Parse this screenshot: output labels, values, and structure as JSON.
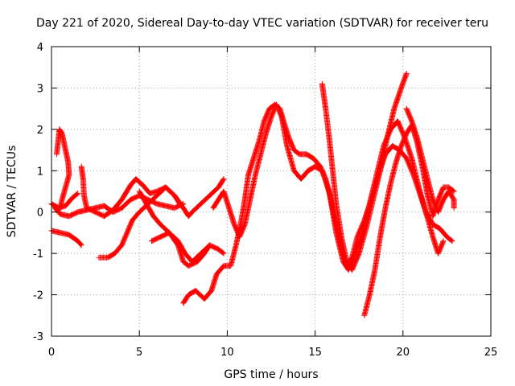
{
  "chart_data": {
    "type": "scatter",
    "title": "Day 221 of 2020, Sidereal Day-to-day VTEC variation (SDTVAR) for receiver teru",
    "xlabel": "GPS time / hours",
    "ylabel": "SDTVAR / TECUs",
    "xlim": [
      0,
      25
    ],
    "ylim": [
      -3,
      4
    ],
    "xticks": [
      0,
      5,
      10,
      15,
      20,
      25
    ],
    "yticks": [
      -3,
      -2,
      -1,
      0,
      1,
      2,
      3,
      4
    ],
    "grid": true,
    "marker": "+",
    "color": "#ff0000",
    "series": [
      {
        "name": "track-1",
        "points": [
          [
            0,
            -0.45
          ],
          [
            0.5,
            -0.5
          ],
          [
            1,
            -0.55
          ],
          [
            1.5,
            -0.7
          ],
          [
            1.7,
            -0.8
          ]
        ]
      },
      {
        "name": "track-2",
        "points": [
          [
            0,
            0.2
          ],
          [
            0.4,
            0.1
          ],
          [
            0.8,
            0.15
          ],
          [
            1.2,
            0.35
          ],
          [
            1.5,
            0.45
          ]
        ]
      },
      {
        "name": "track-3",
        "points": [
          [
            0.3,
            1.4
          ],
          [
            0.45,
            2.0
          ],
          [
            0.6,
            1.9
          ],
          [
            0.75,
            1.6
          ],
          [
            0.85,
            1.4
          ],
          [
            0.95,
            1.2
          ],
          [
            1.0,
            0.9
          ],
          [
            0.8,
            0.6
          ],
          [
            0.6,
            0.3
          ],
          [
            0.5,
            0.1
          ]
        ]
      },
      {
        "name": "track-4",
        "points": [
          [
            0.2,
            0.1
          ],
          [
            0.5,
            -0.05
          ],
          [
            1,
            -0.1
          ],
          [
            1.5,
            0.0
          ],
          [
            2,
            0.05
          ],
          [
            2.5,
            0.1
          ],
          [
            3,
            0.15
          ],
          [
            3.5,
            0.0
          ],
          [
            4,
            0.1
          ],
          [
            4.5,
            0.3
          ],
          [
            5,
            0.4
          ],
          [
            5.5,
            0.3
          ],
          [
            6,
            0.2
          ],
          [
            6.5,
            0.15
          ],
          [
            7,
            0.1
          ],
          [
            7.5,
            0.2
          ]
        ]
      },
      {
        "name": "track-5",
        "points": [
          [
            1.7,
            1.1
          ],
          [
            1.8,
            0.8
          ],
          [
            1.85,
            0.4
          ],
          [
            2,
            0.1
          ],
          [
            2.5,
            0.0
          ],
          [
            3,
            -0.1
          ],
          [
            3.5,
            0.05
          ],
          [
            4,
            0.3
          ],
          [
            4.5,
            0.65
          ],
          [
            4.8,
            0.8
          ],
          [
            5.2,
            0.65
          ],
          [
            5.6,
            0.45
          ],
          [
            6,
            0.5
          ],
          [
            6.5,
            0.6
          ],
          [
            7,
            0.4
          ],
          [
            7.3,
            0.2
          ]
        ]
      },
      {
        "name": "track-6",
        "points": [
          [
            2.7,
            -1.1
          ],
          [
            3.2,
            -1.1
          ],
          [
            3.6,
            -1.0
          ],
          [
            4,
            -0.8
          ],
          [
            4.3,
            -0.5
          ],
          [
            4.6,
            -0.2
          ],
          [
            5,
            0.0
          ],
          [
            5.5,
            0.2
          ],
          [
            6,
            0.4
          ],
          [
            6.5,
            0.6
          ],
          [
            7,
            0.4
          ],
          [
            7.5,
            0.1
          ],
          [
            7.8,
            -0.1
          ],
          [
            8,
            0.0
          ],
          [
            8.5,
            0.2
          ],
          [
            9,
            0.4
          ],
          [
            9.5,
            0.6
          ],
          [
            9.8,
            0.8
          ]
        ]
      },
      {
        "name": "track-7",
        "points": [
          [
            5.7,
            -0.7
          ],
          [
            6.2,
            -0.6
          ],
          [
            6.7,
            -0.5
          ],
          [
            7.2,
            -0.7
          ],
          [
            7.6,
            -1.0
          ],
          [
            8,
            -1.2
          ],
          [
            8.5,
            -1.0
          ],
          [
            9,
            -0.8
          ],
          [
            9.5,
            -0.9
          ],
          [
            9.8,
            -1.0
          ]
        ]
      },
      {
        "name": "track-8",
        "points": [
          [
            5,
            0.5
          ],
          [
            5.4,
            0.2
          ],
          [
            5.8,
            -0.1
          ],
          [
            6.2,
            -0.3
          ],
          [
            6.7,
            -0.5
          ],
          [
            7.2,
            -0.8
          ],
          [
            7.5,
            -1.2
          ],
          [
            7.8,
            -1.3
          ],
          [
            8.3,
            -1.2
          ],
          [
            8.7,
            -1.0
          ],
          [
            9,
            -0.8
          ]
        ]
      },
      {
        "name": "track-9",
        "points": [
          [
            7.5,
            -2.2
          ],
          [
            7.8,
            -2.0
          ],
          [
            8.2,
            -1.9
          ],
          [
            8.7,
            -2.1
          ],
          [
            9.1,
            -1.9
          ],
          [
            9.4,
            -1.5
          ],
          [
            9.8,
            -1.3
          ],
          [
            10.2,
            -1.3
          ],
          [
            10.5,
            -0.8
          ],
          [
            10.8,
            -0.2
          ],
          [
            11,
            0.3
          ],
          [
            11.2,
            0.9
          ],
          [
            11.5,
            1.3
          ],
          [
            11.8,
            1.7
          ],
          [
            12.1,
            2.2
          ],
          [
            12.4,
            2.5
          ],
          [
            12.7,
            2.6
          ],
          [
            13,
            2.5
          ],
          [
            13.2,
            2.2
          ],
          [
            13.5,
            1.8
          ],
          [
            13.8,
            1.5
          ],
          [
            14.1,
            1.4
          ],
          [
            14.5,
            1.4
          ],
          [
            14.9,
            1.3
          ],
          [
            15.3,
            1.1
          ],
          [
            15.6,
            0.8
          ],
          [
            15.9,
            0.3
          ],
          [
            16.2,
            -0.3
          ],
          [
            16.5,
            -0.9
          ],
          [
            16.8,
            -1.3
          ],
          [
            17.1,
            -1.1
          ],
          [
            17.4,
            -0.6
          ],
          [
            17.8,
            -0.2
          ],
          [
            18.2,
            0.3
          ],
          [
            18.6,
            0.9
          ],
          [
            19,
            1.4
          ],
          [
            19.4,
            1.6
          ],
          [
            19.8,
            1.5
          ],
          [
            20.2,
            1.3
          ],
          [
            20.6,
            0.9
          ],
          [
            21,
            0.4
          ],
          [
            21.3,
            0.0
          ],
          [
            21.7,
            -0.3
          ],
          [
            22.1,
            -0.4
          ],
          [
            22.5,
            -0.6
          ],
          [
            22.8,
            -0.7
          ]
        ]
      },
      {
        "name": "track-10",
        "points": [
          [
            9.2,
            0.1
          ],
          [
            9.5,
            0.3
          ],
          [
            9.8,
            0.5
          ],
          [
            10.1,
            0.1
          ],
          [
            10.4,
            -0.3
          ],
          [
            10.7,
            -0.6
          ],
          [
            11,
            -0.3
          ],
          [
            11.3,
            0.3
          ],
          [
            11.6,
            0.9
          ],
          [
            11.9,
            1.4
          ],
          [
            12.2,
            1.9
          ],
          [
            12.5,
            2.3
          ],
          [
            12.8,
            2.6
          ],
          [
            13.1,
            2.3
          ],
          [
            13.4,
            1.6
          ],
          [
            13.8,
            1.0
          ],
          [
            14.2,
            0.8
          ],
          [
            14.6,
            1.0
          ],
          [
            15,
            1.1
          ],
          [
            15.4,
            1.0
          ],
          [
            15.8,
            0.5
          ],
          [
            16.2,
            -0.5
          ],
          [
            16.6,
            -1.2
          ],
          [
            16.9,
            -1.4
          ],
          [
            17.3,
            -1.0
          ],
          [
            17.7,
            -0.5
          ],
          [
            18.1,
            0.2
          ],
          [
            18.5,
            0.9
          ],
          [
            18.9,
            1.6
          ],
          [
            19.3,
            2.0
          ],
          [
            19.7,
            2.2
          ],
          [
            20.1,
            1.8
          ],
          [
            20.5,
            1.3
          ],
          [
            20.9,
            0.6
          ],
          [
            21.3,
            0.0
          ],
          [
            21.7,
            -0.6
          ],
          [
            22,
            -1.0
          ],
          [
            22.3,
            -0.7
          ]
        ]
      },
      {
        "name": "track-11",
        "points": [
          [
            15.4,
            3.1
          ],
          [
            15.6,
            2.5
          ],
          [
            15.8,
            1.8
          ],
          [
            16,
            1.0
          ],
          [
            16.2,
            0.2
          ],
          [
            16.5,
            -0.6
          ],
          [
            16.8,
            -1.2
          ],
          [
            17.1,
            -1.4
          ],
          [
            17.5,
            -1.0
          ],
          [
            17.9,
            -0.4
          ],
          [
            18.3,
            0.3
          ],
          [
            18.7,
            1.0
          ],
          [
            19.1,
            1.8
          ],
          [
            19.5,
            2.5
          ],
          [
            19.9,
            3.0
          ],
          [
            20.2,
            3.35
          ]
        ]
      },
      {
        "name": "track-12",
        "points": [
          [
            17.8,
            -2.5
          ],
          [
            18.1,
            -2.0
          ],
          [
            18.4,
            -1.4
          ],
          [
            18.7,
            -0.6
          ],
          [
            19,
            0.1
          ],
          [
            19.3,
            0.7
          ],
          [
            19.6,
            1.2
          ],
          [
            19.9,
            1.6
          ],
          [
            20.2,
            1.9
          ],
          [
            20.5,
            2.1
          ],
          [
            20.8,
            1.7
          ],
          [
            21.1,
            1.1
          ],
          [
            21.4,
            0.4
          ],
          [
            21.7,
            -0.1
          ],
          [
            22,
            0.3
          ],
          [
            22.3,
            0.6
          ],
          [
            22.6,
            0.6
          ],
          [
            22.9,
            0.5
          ]
        ]
      },
      {
        "name": "track-13",
        "points": [
          [
            20.2,
            2.5
          ],
          [
            20.5,
            2.2
          ],
          [
            20.8,
            1.8
          ],
          [
            21.1,
            1.3
          ],
          [
            21.4,
            0.8
          ],
          [
            21.7,
            0.3
          ],
          [
            22,
            0.0
          ],
          [
            22.3,
            0.3
          ],
          [
            22.6,
            0.5
          ],
          [
            22.9,
            0.3
          ],
          [
            22.9,
            0.1
          ]
        ]
      }
    ]
  }
}
